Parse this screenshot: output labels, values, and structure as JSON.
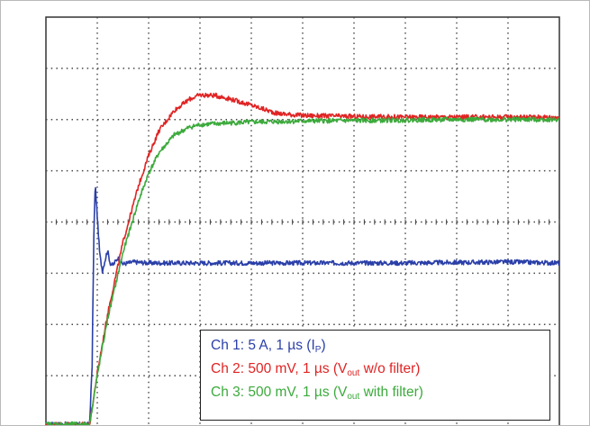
{
  "chart_data": {
    "type": "line",
    "title": "",
    "xlabel": "",
    "ylabel": "",
    "grid": true,
    "x_divisions": 10,
    "y_divisions": 8,
    "xlim": [
      0,
      10
    ],
    "ylim": [
      0,
      8
    ],
    "legend_position": "bottom-right",
    "series": [
      {
        "name": "Ch 1: 5 A, 1 µs (IP)",
        "channel": "Ch 1",
        "scale": "5 A, 1 µs",
        "quantity": "I",
        "quantity_sub": "P",
        "color": "#2a3fa8",
        "x": [
          0,
          0.85,
          0.9,
          0.93,
          0.96,
          1.0,
          1.05,
          1.1,
          1.15,
          1.2,
          1.25,
          1.3,
          1.4,
          1.5,
          1.7,
          2.0,
          3.0,
          5.0,
          7.0,
          9.0,
          10.0
        ],
        "y": [
          0.05,
          0.05,
          1.2,
          3.6,
          4.75,
          4.1,
          3.35,
          3.05,
          3.25,
          3.45,
          3.2,
          3.15,
          3.3,
          3.18,
          3.22,
          3.2,
          3.2,
          3.2,
          3.2,
          3.22,
          3.2
        ]
      },
      {
        "name": "Ch 2: 500 mV, 1 µs (Vout w/o filter)",
        "channel": "Ch 2",
        "scale": "500 mV, 1 µs",
        "quantity": "V",
        "quantity_sub": "out",
        "quantity_suffix": "w/o filter",
        "color": "#e02424",
        "x": [
          0,
          0.85,
          0.92,
          1.0,
          1.2,
          1.5,
          1.8,
          2.0,
          2.2,
          2.5,
          2.8,
          3.0,
          3.3,
          3.6,
          4.0,
          4.5,
          5.0,
          6.0,
          7.0,
          8.0,
          9.0,
          10.0
        ],
        "y": [
          0.05,
          0.05,
          0.5,
          1.05,
          2.2,
          3.6,
          4.7,
          5.3,
          5.78,
          6.18,
          6.4,
          6.48,
          6.47,
          6.4,
          6.28,
          6.12,
          6.08,
          6.06,
          6.05,
          6.05,
          6.05,
          6.05
        ]
      },
      {
        "name": "Ch 3: 500 mV, 1 µs (Vout with filter)",
        "channel": "Ch 3",
        "scale": "500 mV, 1 µs",
        "quantity": "V",
        "quantity_sub": "out",
        "quantity_suffix": "with filter",
        "color": "#3caa3c",
        "x": [
          0,
          0.85,
          0.92,
          1.0,
          1.2,
          1.5,
          1.8,
          2.0,
          2.2,
          2.5,
          2.8,
          3.0,
          3.5,
          4.0,
          5.0,
          6.0,
          7.0,
          8.0,
          9.0,
          10.0
        ],
        "y": [
          0.05,
          0.05,
          0.5,
          1.0,
          2.1,
          3.4,
          4.4,
          4.95,
          5.35,
          5.7,
          5.85,
          5.9,
          5.93,
          5.95,
          5.97,
          5.98,
          5.99,
          6.0,
          6.0,
          6.0
        ]
      }
    ]
  },
  "legend": {
    "ch1": {
      "prefix": "Ch 1: 5 A, 1 µs (I",
      "sub": "P",
      "suffix": ")"
    },
    "ch2": {
      "prefix": "Ch 2: 500 mV, 1 µs (V",
      "sub": "out",
      "suffix": " w/o filter)"
    },
    "ch3": {
      "prefix": "Ch 3: 500 mV, 1 µs (V",
      "sub": "out",
      "suffix": " with filter)"
    }
  }
}
